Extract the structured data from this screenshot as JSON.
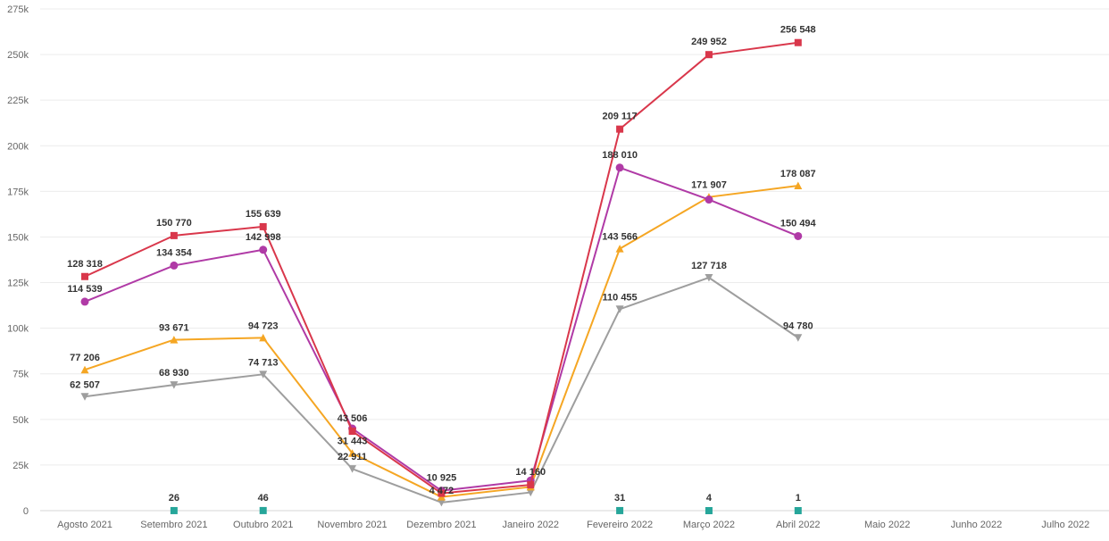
{
  "chart_data": {
    "type": "line",
    "title": "",
    "xlabel": "",
    "ylabel": "",
    "ylim": [
      0,
      275000
    ],
    "grid": true,
    "legend": "none",
    "y_ticks": [
      {
        "value": 0,
        "label": "0"
      },
      {
        "value": 25000,
        "label": "25k"
      },
      {
        "value": 50000,
        "label": "50k"
      },
      {
        "value": 75000,
        "label": "75k"
      },
      {
        "value": 100000,
        "label": "100k"
      },
      {
        "value": 125000,
        "label": "125k"
      },
      {
        "value": 150000,
        "label": "150k"
      },
      {
        "value": 175000,
        "label": "175k"
      },
      {
        "value": 200000,
        "label": "200k"
      },
      {
        "value": 225000,
        "label": "225k"
      },
      {
        "value": 250000,
        "label": "250k"
      },
      {
        "value": 275000,
        "label": "275k"
      }
    ],
    "categories": [
      "Agosto 2021",
      "Setembro 2021",
      "Outubro 2021",
      "Novembro 2021",
      "Dezembro 2021",
      "Janeiro 2022",
      "Fevereiro 2022",
      "Março 2022",
      "Abril 2022",
      "Maio 2022",
      "Junho 2022",
      "Julho 2022"
    ],
    "series": [
      {
        "name": "gray-series",
        "color": "#9e9e9e",
        "marker": "triangle-down",
        "values": [
          62507,
          68930,
          74713,
          22911,
          4472,
          10000,
          110455,
          127718,
          94780,
          null,
          null,
          null
        ],
        "labels": [
          "62 507",
          "68 930",
          "74 713",
          "22 911",
          "4 472",
          "",
          "110 455",
          "127 718",
          "94 780",
          null,
          null,
          null
        ]
      },
      {
        "name": "orange-series",
        "color": "#f5a623",
        "marker": "triangle-up",
        "values": [
          77206,
          93671,
          94723,
          31443,
          7500,
          13000,
          143566,
          171907,
          178087,
          null,
          null,
          null
        ],
        "labels": [
          "77 206",
          "93 671",
          "94 723",
          "31 443",
          "",
          "",
          "143 566",
          "171 907",
          "178 087",
          null,
          null,
          null
        ]
      },
      {
        "name": "purple-series",
        "color": "#b03aa6",
        "marker": "circle",
        "values": [
          114539,
          134354,
          142998,
          45000,
          10925,
          16500,
          188010,
          170500,
          150494,
          null,
          null,
          null
        ],
        "labels": [
          "114 539",
          "134 354",
          "142 998",
          "",
          "10 925",
          "",
          "188 010",
          "",
          "150 494",
          null,
          null,
          null
        ]
      },
      {
        "name": "red-series",
        "color": "#d9374b",
        "marker": "square",
        "values": [
          128318,
          150770,
          155639,
          43506,
          9500,
          14160,
          209117,
          249952,
          256548,
          null,
          null,
          null
        ],
        "labels": [
          "128 318",
          "150 770",
          "155 639",
          "43 506",
          "",
          "14 160",
          "209 117",
          "249 952",
          "256 548",
          null,
          null,
          null
        ]
      },
      {
        "name": "teal-series",
        "color": "#26a69a",
        "marker": "square",
        "values": [
          null,
          26,
          46,
          null,
          null,
          null,
          31,
          4,
          1,
          null,
          null,
          null
        ],
        "labels": [
          null,
          "26",
          "46",
          null,
          null,
          null,
          "31",
          "4",
          "1",
          null,
          null,
          null
        ]
      }
    ]
  }
}
